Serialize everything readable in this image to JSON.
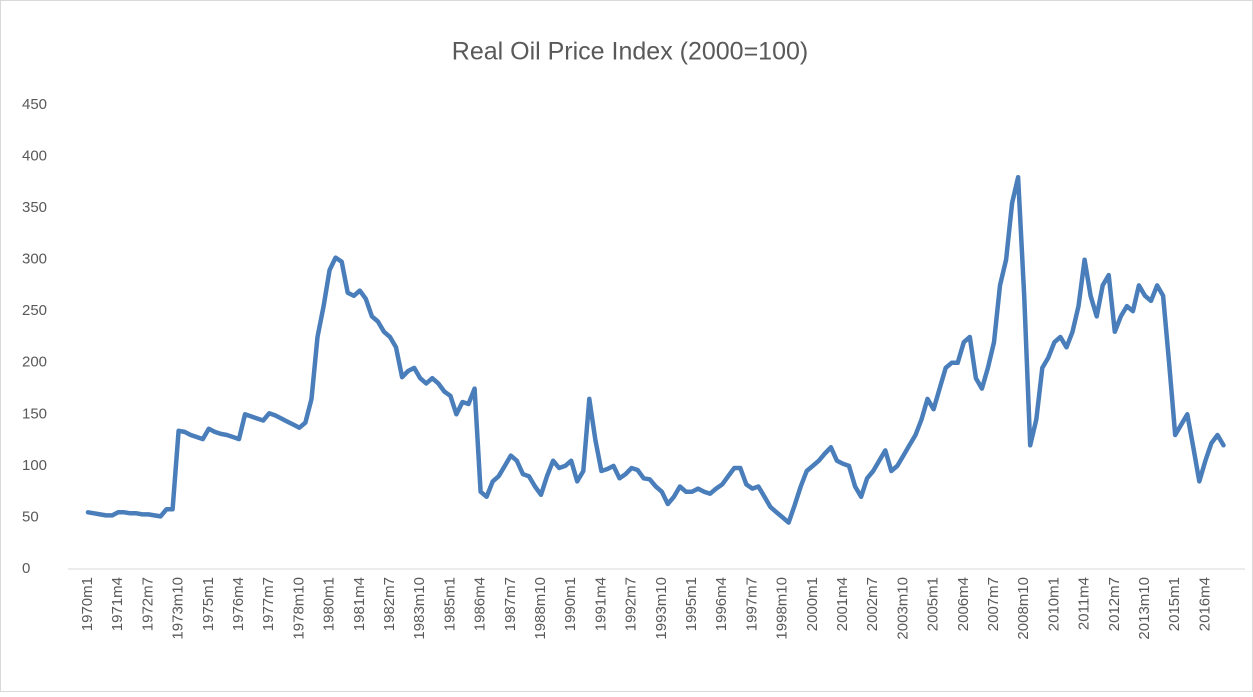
{
  "chart_data": {
    "type": "line",
    "title": "Real Oil Price Index (2000=100)",
    "categories": [
      "1970m1",
      null,
      null,
      null,
      null,
      "1971m4",
      null,
      null,
      null,
      null,
      "1972m7",
      null,
      null,
      null,
      null,
      "1973m10",
      null,
      null,
      null,
      null,
      "1975m1",
      null,
      null,
      null,
      null,
      "1976m4",
      null,
      null,
      null,
      null,
      "1977m7",
      null,
      null,
      null,
      null,
      "1978m10",
      null,
      null,
      null,
      null,
      "1980m1",
      null,
      null,
      null,
      null,
      "1981m4",
      null,
      null,
      null,
      null,
      "1982m7",
      null,
      null,
      null,
      null,
      "1983m10",
      null,
      null,
      null,
      null,
      "1985m1",
      null,
      null,
      null,
      null,
      "1986m4",
      null,
      null,
      null,
      null,
      "1987m7",
      null,
      null,
      null,
      null,
      "1988m10",
      null,
      null,
      null,
      null,
      "1990m1",
      null,
      null,
      null,
      null,
      "1991m4",
      null,
      null,
      null,
      null,
      "1992m7",
      null,
      null,
      null,
      null,
      "1993m10",
      null,
      null,
      null,
      null,
      "1995m1",
      null,
      null,
      null,
      null,
      "1996m4",
      null,
      null,
      null,
      null,
      "1997m7",
      null,
      null,
      null,
      null,
      "1998m10",
      null,
      null,
      null,
      null,
      "2000m1",
      null,
      null,
      null,
      null,
      "2001m4",
      null,
      null,
      null,
      null,
      "2002m7",
      null,
      null,
      null,
      null,
      "2003m10",
      null,
      null,
      null,
      null,
      "2005m1",
      null,
      null,
      null,
      null,
      "2006m4",
      null,
      null,
      null,
      null,
      "2007m7",
      null,
      null,
      null,
      null,
      "2008m10",
      null,
      null,
      null,
      null,
      "2010m1",
      null,
      null,
      null,
      null,
      "2011m4",
      null,
      null,
      null,
      null,
      "2012m7",
      null,
      null,
      null,
      null,
      "2013m10",
      null,
      null,
      null,
      null,
      "2015m1",
      null,
      null,
      null,
      null,
      "2016m4",
      null,
      null,
      null
    ],
    "values": [
      55,
      54,
      53,
      52,
      52,
      55,
      55,
      54,
      54,
      53,
      53,
      52,
      51,
      58,
      58,
      134,
      133,
      130,
      128,
      126,
      136,
      133,
      131,
      130,
      128,
      126,
      150,
      148,
      146,
      144,
      151,
      149,
      146,
      143,
      140,
      137,
      142,
      165,
      225,
      255,
      290,
      302,
      298,
      268,
      265,
      270,
      262,
      245,
      240,
      230,
      225,
      215,
      186,
      192,
      195,
      185,
      180,
      185,
      180,
      172,
      168,
      150,
      162,
      160,
      175,
      75,
      70,
      85,
      90,
      100,
      110,
      105,
      92,
      90,
      80,
      72,
      90,
      105,
      98,
      100,
      105,
      85,
      95,
      165,
      125,
      95,
      97,
      100,
      88,
      92,
      98,
      96,
      88,
      87,
      80,
      75,
      63,
      70,
      80,
      75,
      75,
      78,
      75,
      73,
      78,
      82,
      90,
      98,
      98,
      82,
      78,
      80,
      70,
      60,
      55,
      50,
      45,
      62,
      80,
      95,
      100,
      105,
      112,
      118,
      105,
      102,
      100,
      80,
      70,
      88,
      95,
      105,
      115,
      95,
      100,
      110,
      120,
      130,
      145,
      165,
      155,
      175,
      195,
      200,
      200,
      220,
      225,
      185,
      175,
      195,
      220,
      275,
      300,
      355,
      380,
      265,
      120,
      145,
      195,
      205,
      220,
      225,
      215,
      230,
      255,
      300,
      265,
      245,
      275,
      285,
      230,
      245,
      255,
      250,
      275,
      265,
      260,
      275,
      265,
      200,
      130,
      140,
      150,
      118,
      85,
      105,
      122,
      130,
      120
    ],
    "color": "#4a7ebb",
    "ylim": [
      0,
      450
    ],
    "yticks": [
      0,
      50,
      100,
      150,
      200,
      250,
      300,
      350,
      400,
      450
    ],
    "grid": false
  }
}
